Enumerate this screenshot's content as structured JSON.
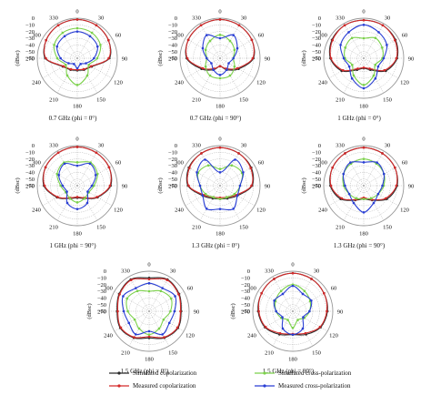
{
  "figure": {
    "angle_labels": [
      "330",
      "0",
      "30",
      "60",
      "90",
      "120",
      "150",
      "180",
      "210",
      "240",
      "270",
      "300"
    ],
    "radial_labels": [
      "0",
      "−10",
      "−20",
      "−30",
      "−40",
      "−50",
      "−60"
    ],
    "radial_unit": "(dBsc)",
    "colors": {
      "sim_co": "#2a2a2a",
      "meas_co": "#d42a2a",
      "sim_cross": "#7bd14a",
      "meas_cross": "#2a3fd4"
    }
  },
  "legend": {
    "items": [
      {
        "label": "Simulated copolarization",
        "color": "#2a2a2a"
      },
      {
        "label": "Measured copolarization",
        "color": "#d42a2a"
      },
      {
        "label": "Simulated cross-polarization",
        "color": "#7bd14a"
      },
      {
        "label": "Measured cross-polarization",
        "color": "#2a3fd4"
      }
    ]
  },
  "chart_data": [
    {
      "type": "polar",
      "title": "0.7 GHz (phi = 0°)",
      "rlim": [
        -60,
        0
      ],
      "theta_deg": [
        0,
        30,
        60,
        90,
        120,
        150,
        180,
        210,
        240,
        270,
        300,
        330
      ],
      "series": [
        {
          "name": "Simulated copolarization",
          "values": [
            -2,
            -3,
            -6,
            -12,
            -35,
            -40,
            -42,
            -40,
            -35,
            -12,
            -6,
            -3
          ]
        },
        {
          "name": "Measured copolarization",
          "values": [
            -2,
            -3,
            -6,
            -13,
            -36,
            -41,
            -43,
            -41,
            -36,
            -13,
            -6,
            -3
          ]
        },
        {
          "name": "Simulated cross-polarization",
          "values": [
            -15,
            -16,
            -20,
            -30,
            -40,
            -30,
            -20,
            -30,
            -40,
            -30,
            -20,
            -16
          ]
        },
        {
          "name": "Measured cross-polarization",
          "values": [
            -20,
            -22,
            -25,
            -35,
            -45,
            -50,
            -45,
            -50,
            -45,
            -35,
            -25,
            -22
          ]
        }
      ]
    },
    {
      "type": "polar",
      "title": "0.7 GHz (phi = 90°)",
      "rlim": [
        -60,
        0
      ],
      "theta_deg": [
        0,
        30,
        60,
        90,
        120,
        150,
        180,
        210,
        240,
        270,
        300,
        330
      ],
      "series": [
        {
          "name": "Simulated copolarization",
          "values": [
            -2,
            -3,
            -5,
            -10,
            -28,
            -40,
            -48,
            -40,
            -28,
            -10,
            -5,
            -3
          ]
        },
        {
          "name": "Measured copolarization",
          "values": [
            -2,
            -3,
            -5,
            -11,
            -30,
            -42,
            -48,
            -42,
            -30,
            -11,
            -5,
            -3
          ]
        },
        {
          "name": "Simulated cross-polarization",
          "values": [
            -25,
            -30,
            -35,
            -40,
            -35,
            -30,
            -30,
            -30,
            -35,
            -40,
            -35,
            -30
          ]
        },
        {
          "name": "Measured cross-polarization",
          "values": [
            -30,
            -20,
            -30,
            -40,
            -45,
            -40,
            -35,
            -40,
            -45,
            -40,
            -30,
            -20
          ]
        }
      ]
    },
    {
      "type": "polar",
      "title": "1 GHz (phi = 0°)",
      "rlim": [
        -60,
        0
      ],
      "theta_deg": [
        0,
        30,
        60,
        90,
        120,
        150,
        180,
        210,
        240,
        270,
        300,
        330
      ],
      "series": [
        {
          "name": "Simulated copolarization",
          "values": [
            -3,
            -3,
            -5,
            -10,
            -22,
            -40,
            -45,
            -40,
            -22,
            -10,
            -5,
            -3
          ]
        },
        {
          "name": "Measured copolarization",
          "values": [
            -3,
            -3,
            -6,
            -11,
            -24,
            -42,
            -46,
            -42,
            -24,
            -11,
            -6,
            -3
          ]
        },
        {
          "name": "Simulated cross-polarization",
          "values": [
            -30,
            -25,
            -28,
            -32,
            -40,
            -30,
            -20,
            -30,
            -40,
            -32,
            -28,
            -25
          ]
        },
        {
          "name": "Measured cross-polarization",
          "values": [
            -10,
            -15,
            -20,
            -30,
            -35,
            -25,
            -15,
            -25,
            -35,
            -30,
            -20,
            -15
          ]
        }
      ]
    },
    {
      "type": "polar",
      "title": "1 GHz (phi = 90°)",
      "rlim": [
        -60,
        0
      ],
      "theta_deg": [
        0,
        30,
        60,
        90,
        120,
        150,
        180,
        210,
        240,
        270,
        300,
        330
      ],
      "series": [
        {
          "name": "Simulated copolarization",
          "values": [
            -2,
            -3,
            -5,
            -10,
            -25,
            -38,
            -42,
            -38,
            -25,
            -10,
            -5,
            -3
          ]
        },
        {
          "name": "Measured copolarization",
          "values": [
            -2,
            -3,
            -5,
            -11,
            -26,
            -39,
            -43,
            -39,
            -26,
            -11,
            -5,
            -3
          ]
        },
        {
          "name": "Simulated cross-polarization",
          "values": [
            -25,
            -20,
            -25,
            -35,
            -40,
            -38,
            -35,
            -38,
            -40,
            -35,
            -25,
            -20
          ]
        },
        {
          "name": "Measured cross-polarization",
          "values": [
            -30,
            -22,
            -28,
            -38,
            -42,
            -30,
            -25,
            -30,
            -42,
            -38,
            -28,
            -22
          ]
        }
      ]
    },
    {
      "type": "polar",
      "title": "1.3 GHz (phi = 0°)",
      "rlim": [
        -60,
        0
      ],
      "theta_deg": [
        0,
        30,
        60,
        90,
        120,
        150,
        180,
        210,
        240,
        270,
        300,
        330
      ],
      "series": [
        {
          "name": "Simulated copolarization",
          "values": [
            -3,
            -4,
            -6,
            -12,
            -30,
            -38,
            -40,
            -38,
            -30,
            -12,
            -6,
            -4
          ]
        },
        {
          "name": "Measured copolarization",
          "values": [
            -3,
            -4,
            -7,
            -13,
            -32,
            -40,
            -42,
            -40,
            -32,
            -13,
            -7,
            -4
          ]
        },
        {
          "name": "Simulated cross-polarization",
          "values": [
            -35,
            -25,
            -22,
            -30,
            -35,
            -40,
            -40,
            -40,
            -35,
            -30,
            -22,
            -25
          ]
        },
        {
          "name": "Measured cross-polarization",
          "values": [
            -40,
            -15,
            -20,
            -30,
            -30,
            -20,
            -25,
            -20,
            -30,
            -30,
            -20,
            -15
          ]
        }
      ]
    },
    {
      "type": "polar",
      "title": "1.3 GHz (phi = 90°)",
      "rlim": [
        -60,
        0
      ],
      "theta_deg": [
        0,
        30,
        60,
        90,
        120,
        150,
        180,
        210,
        240,
        270,
        300,
        330
      ],
      "series": [
        {
          "name": "Simulated copolarization",
          "values": [
            -3,
            -4,
            -6,
            -10,
            -20,
            -35,
            -40,
            -35,
            -20,
            -10,
            -6,
            -4
          ]
        },
        {
          "name": "Measured copolarization",
          "values": [
            -3,
            -4,
            -6,
            -11,
            -22,
            -36,
            -42,
            -36,
            -22,
            -11,
            -6,
            -4
          ]
        },
        {
          "name": "Simulated cross-polarization",
          "values": [
            -20,
            -22,
            -25,
            -30,
            -35,
            -38,
            -40,
            -38,
            -35,
            -30,
            -25,
            -22
          ]
        },
        {
          "name": "Measured cross-polarization",
          "values": [
            -25,
            -20,
            -25,
            -32,
            -35,
            -30,
            -20,
            -30,
            -35,
            -32,
            -25,
            -20
          ]
        }
      ]
    },
    {
      "type": "polar",
      "title": "1.5 GHz (phi = 0°)",
      "rlim": [
        -60,
        0
      ],
      "theta_deg": [
        0,
        30,
        60,
        90,
        120,
        150,
        180,
        210,
        240,
        270,
        300,
        330
      ],
      "series": [
        {
          "name": "Simulated copolarization",
          "values": [
            -10,
            -5,
            -8,
            -12,
            -10,
            -14,
            -20,
            -14,
            -10,
            -12,
            -8,
            -5
          ]
        },
        {
          "name": "Measured copolarization",
          "values": [
            -12,
            -6,
            -9,
            -13,
            -11,
            -15,
            -22,
            -15,
            -11,
            -13,
            -9,
            -6
          ]
        },
        {
          "name": "Simulated cross-polarization",
          "values": [
            -30,
            -25,
            -22,
            -28,
            -35,
            -30,
            -25,
            -30,
            -35,
            -28,
            -22,
            -25
          ]
        },
        {
          "name": "Measured cross-polarization",
          "values": [
            -18,
            -20,
            -15,
            -22,
            -25,
            -20,
            -30,
            -20,
            -25,
            -22,
            -15,
            -20
          ]
        }
      ]
    },
    {
      "type": "polar",
      "title": "1.5 GHz (phi = 90°)",
      "rlim": [
        -60,
        0
      ],
      "theta_deg": [
        0,
        30,
        60,
        90,
        120,
        150,
        180,
        210,
        240,
        270,
        300,
        330
      ],
      "series": [
        {
          "name": "Simulated copolarization",
          "values": [
            -3,
            -4,
            -6,
            -8,
            -12,
            -20,
            -25,
            -20,
            -12,
            -8,
            -6,
            -4
          ]
        },
        {
          "name": "Measured copolarization",
          "values": [
            -3,
            -4,
            -6,
            -9,
            -13,
            -22,
            -26,
            -22,
            -13,
            -9,
            -6,
            -4
          ]
        },
        {
          "name": "Simulated cross-polarization",
          "values": [
            -20,
            -25,
            -30,
            -35,
            -40,
            -45,
            -35,
            -45,
            -40,
            -35,
            -30,
            -25
          ]
        },
        {
          "name": "Measured cross-polarization",
          "values": [
            -22,
            -30,
            -28,
            -35,
            -42,
            -30,
            -25,
            -30,
            -42,
            -35,
            -28,
            -30
          ]
        }
      ]
    }
  ]
}
